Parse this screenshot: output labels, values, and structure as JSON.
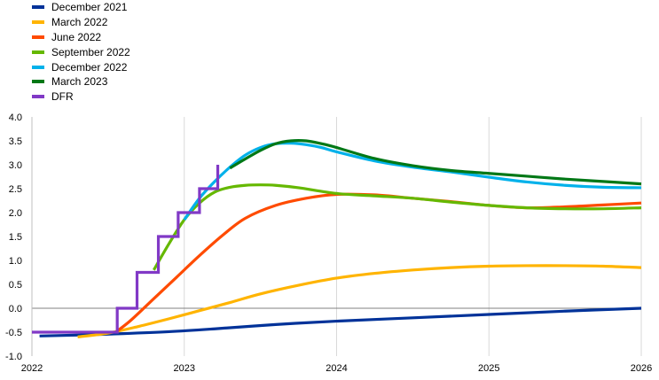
{
  "chart_data": {
    "type": "line",
    "title": "",
    "xlabel": "",
    "ylabel": "",
    "xlim": [
      2022,
      2026
    ],
    "ylim": [
      -1.0,
      4.0
    ],
    "x_ticks": [
      "2022",
      "2023",
      "2024",
      "2025",
      "2026"
    ],
    "y_ticks": [
      "-1.0",
      "-0.5",
      "0.0",
      "0.5",
      "1.0",
      "1.5",
      "2.0",
      "2.5",
      "3.0",
      "3.5",
      "4.0"
    ],
    "grid": "vertical",
    "legend_position": "top-left",
    "series": [
      {
        "name": "December 2021",
        "color": "#003299",
        "x": [
          2022.05,
          2022.3,
          2022.6,
          2022.9,
          2023.2,
          2023.6,
          2024.0,
          2024.5,
          2025.0,
          2025.5,
          2026.0
        ],
        "y": [
          -0.58,
          -0.56,
          -0.53,
          -0.49,
          -0.43,
          -0.34,
          -0.27,
          -0.2,
          -0.13,
          -0.06,
          0.0
        ]
      },
      {
        "name": "March 2022",
        "color": "#FFB400",
        "x": [
          2022.3,
          2022.5,
          2022.7,
          2022.9,
          2023.1,
          2023.3,
          2023.5,
          2023.75,
          2024.0,
          2024.25,
          2024.5,
          2024.75,
          2025.0,
          2025.25,
          2025.5,
          2025.75,
          2026.0
        ],
        "y": [
          -0.6,
          -0.52,
          -0.38,
          -0.22,
          -0.05,
          0.12,
          0.3,
          0.48,
          0.63,
          0.73,
          0.8,
          0.85,
          0.88,
          0.89,
          0.89,
          0.88,
          0.85
        ]
      },
      {
        "name": "June 2022",
        "color": "#FF4B00",
        "x": [
          2022.55,
          2022.65,
          2022.8,
          2022.95,
          2023.1,
          2023.25,
          2023.4,
          2023.6,
          2023.8,
          2024.0,
          2024.25,
          2024.5,
          2024.75,
          2025.0,
          2025.25,
          2025.5,
          2025.75,
          2026.0
        ],
        "y": [
          -0.5,
          -0.25,
          0.2,
          0.65,
          1.1,
          1.52,
          1.88,
          2.15,
          2.3,
          2.38,
          2.37,
          2.3,
          2.23,
          2.15,
          2.1,
          2.12,
          2.16,
          2.2
        ]
      },
      {
        "name": "September 2022",
        "color": "#65B800",
        "x": [
          2022.8,
          2022.9,
          2023.0,
          2023.1,
          2023.2,
          2023.3,
          2023.4,
          2023.5,
          2023.6,
          2023.75,
          2024.0,
          2024.25,
          2024.5,
          2024.75,
          2025.0,
          2025.25,
          2025.5,
          2025.75,
          2026.0
        ],
        "y": [
          0.8,
          1.35,
          1.85,
          2.2,
          2.43,
          2.53,
          2.57,
          2.58,
          2.57,
          2.52,
          2.4,
          2.35,
          2.3,
          2.22,
          2.15,
          2.1,
          2.08,
          2.08,
          2.1
        ]
      },
      {
        "name": "December 2022",
        "color": "#00B1EA",
        "x": [
          2023.0,
          2023.1,
          2023.2,
          2023.3,
          2023.4,
          2023.5,
          2023.6,
          2023.7,
          2023.8,
          2023.9,
          2024.0,
          2024.25,
          2024.5,
          2024.75,
          2025.0,
          2025.25,
          2025.5,
          2025.75,
          2026.0
        ],
        "y": [
          1.85,
          2.3,
          2.65,
          2.95,
          3.2,
          3.36,
          3.44,
          3.45,
          3.42,
          3.36,
          3.27,
          3.08,
          2.95,
          2.85,
          2.74,
          2.64,
          2.57,
          2.53,
          2.52
        ]
      },
      {
        "name": "March 2023",
        "color": "#007816",
        "x": [
          2023.3,
          2023.4,
          2023.5,
          2023.6,
          2023.7,
          2023.8,
          2023.9,
          2024.0,
          2024.25,
          2024.5,
          2024.75,
          2025.0,
          2025.25,
          2025.5,
          2025.75,
          2026.0
        ],
        "y": [
          2.93,
          3.12,
          3.3,
          3.44,
          3.5,
          3.5,
          3.44,
          3.36,
          3.13,
          2.98,
          2.88,
          2.82,
          2.76,
          2.7,
          2.65,
          2.6
        ]
      },
      {
        "name": "DFR",
        "color": "#8139C6",
        "step": true,
        "x": [
          2022.0,
          2022.56,
          2022.56,
          2022.69,
          2022.69,
          2022.83,
          2022.83,
          2022.96,
          2022.96,
          2023.1,
          2023.1,
          2023.22,
          2023.22
        ],
        "y": [
          -0.5,
          -0.5,
          0.0,
          0.0,
          0.75,
          0.75,
          1.5,
          1.5,
          2.0,
          2.0,
          2.5,
          2.5,
          3.0
        ]
      }
    ]
  }
}
